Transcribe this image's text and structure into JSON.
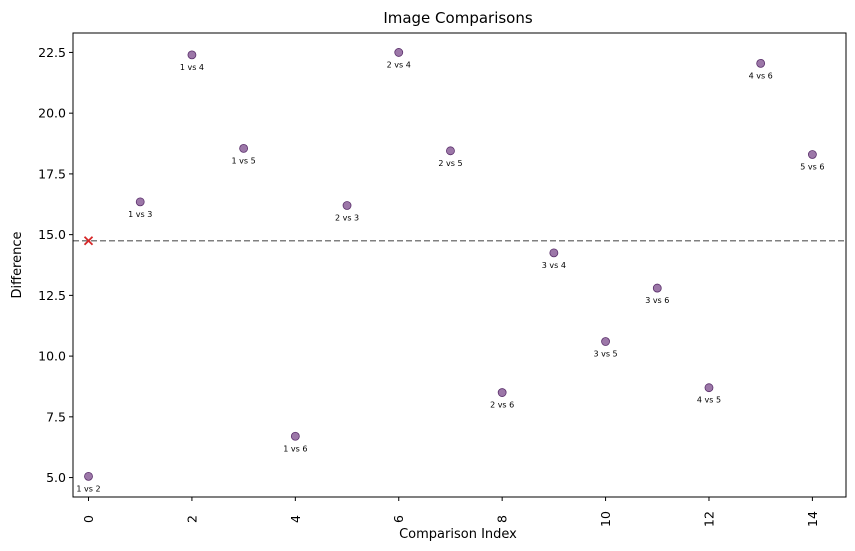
{
  "chart_data": {
    "type": "scatter",
    "title": "Image Comparisons",
    "xlabel": "Comparison Index",
    "ylabel": "Difference",
    "xlim": [
      -0.3,
      14.65
    ],
    "ylim": [
      4.2,
      23.3
    ],
    "xticks": [
      "0",
      "2",
      "4",
      "6",
      "8",
      "10",
      "12",
      "14"
    ],
    "xtick_values": [
      0,
      2,
      4,
      6,
      8,
      10,
      12,
      14
    ],
    "xtick_rotation": 90,
    "yticks": [
      "5.0",
      "7.5",
      "10.0",
      "12.5",
      "15.0",
      "17.5",
      "20.0",
      "22.5"
    ],
    "ytick_values": [
      5.0,
      7.5,
      10.0,
      12.5,
      15.0,
      17.5,
      20.0,
      22.5
    ],
    "grid": false,
    "point_color": "#7b4a8b",
    "points": [
      {
        "x": 0,
        "y": 5.05,
        "label": "1 vs 2"
      },
      {
        "x": 1,
        "y": 16.35,
        "label": "1 vs 3"
      },
      {
        "x": 2,
        "y": 22.4,
        "label": "1 vs 4"
      },
      {
        "x": 3,
        "y": 18.55,
        "label": "1 vs 5"
      },
      {
        "x": 4,
        "y": 6.7,
        "label": "1 vs 6"
      },
      {
        "x": 5,
        "y": 16.2,
        "label": "2 vs 3"
      },
      {
        "x": 6,
        "y": 22.5,
        "label": "2 vs 4"
      },
      {
        "x": 7,
        "y": 18.45,
        "label": "2 vs 5"
      },
      {
        "x": 8,
        "y": 8.5,
        "label": "2 vs 6"
      },
      {
        "x": 9,
        "y": 14.25,
        "label": "3 vs 4"
      },
      {
        "x": 10,
        "y": 10.6,
        "label": "3 vs 5"
      },
      {
        "x": 11,
        "y": 12.8,
        "label": "3 vs 6"
      },
      {
        "x": 12,
        "y": 8.7,
        "label": "4 vs 5"
      },
      {
        "x": 13,
        "y": 22.05,
        "label": "4 vs 6"
      },
      {
        "x": 14,
        "y": 18.3,
        "label": "5 vs 6"
      }
    ],
    "reference_line": {
      "y": 14.75,
      "style": "dashed",
      "color": "#808080"
    },
    "marker": {
      "x": 0,
      "y": 14.75,
      "shape": "x",
      "color": "#d62728"
    }
  }
}
